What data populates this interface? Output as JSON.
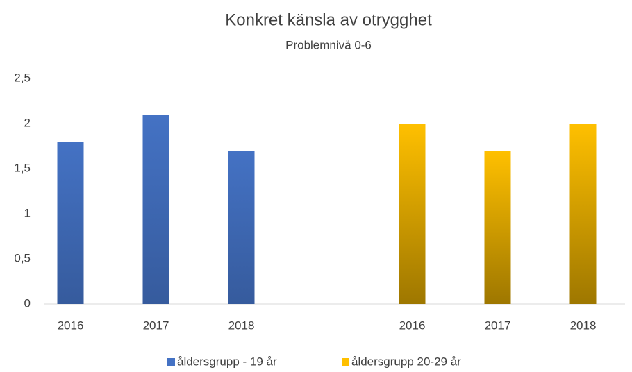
{
  "chart_data": {
    "type": "bar",
    "title": "Konkret känsla av otrygghet",
    "subtitle": "Problemnivå 0-6",
    "categories": [
      "2016",
      "2017",
      "2018",
      null,
      "2016",
      "2017",
      "2018"
    ],
    "series": [
      {
        "name": "åldersgrupp - 19 år",
        "color": "#4472c4",
        "values": [
          1.8,
          2.1,
          1.7,
          null,
          null,
          null,
          null
        ]
      },
      {
        "name": "åldersgrupp 20-29 år",
        "color": "#ffc000",
        "values": [
          null,
          null,
          null,
          null,
          2,
          1.7,
          2
        ]
      }
    ],
    "ylim": [
      0,
      2.5
    ],
    "yticks": [
      0,
      {
        "value": 0.5,
        "label": "0,5"
      },
      1,
      {
        "value": 1.5,
        "label": "1,5"
      },
      2,
      {
        "value": 2.5,
        "label": "2,5"
      }
    ],
    "grid": false,
    "legend": "bottom"
  }
}
